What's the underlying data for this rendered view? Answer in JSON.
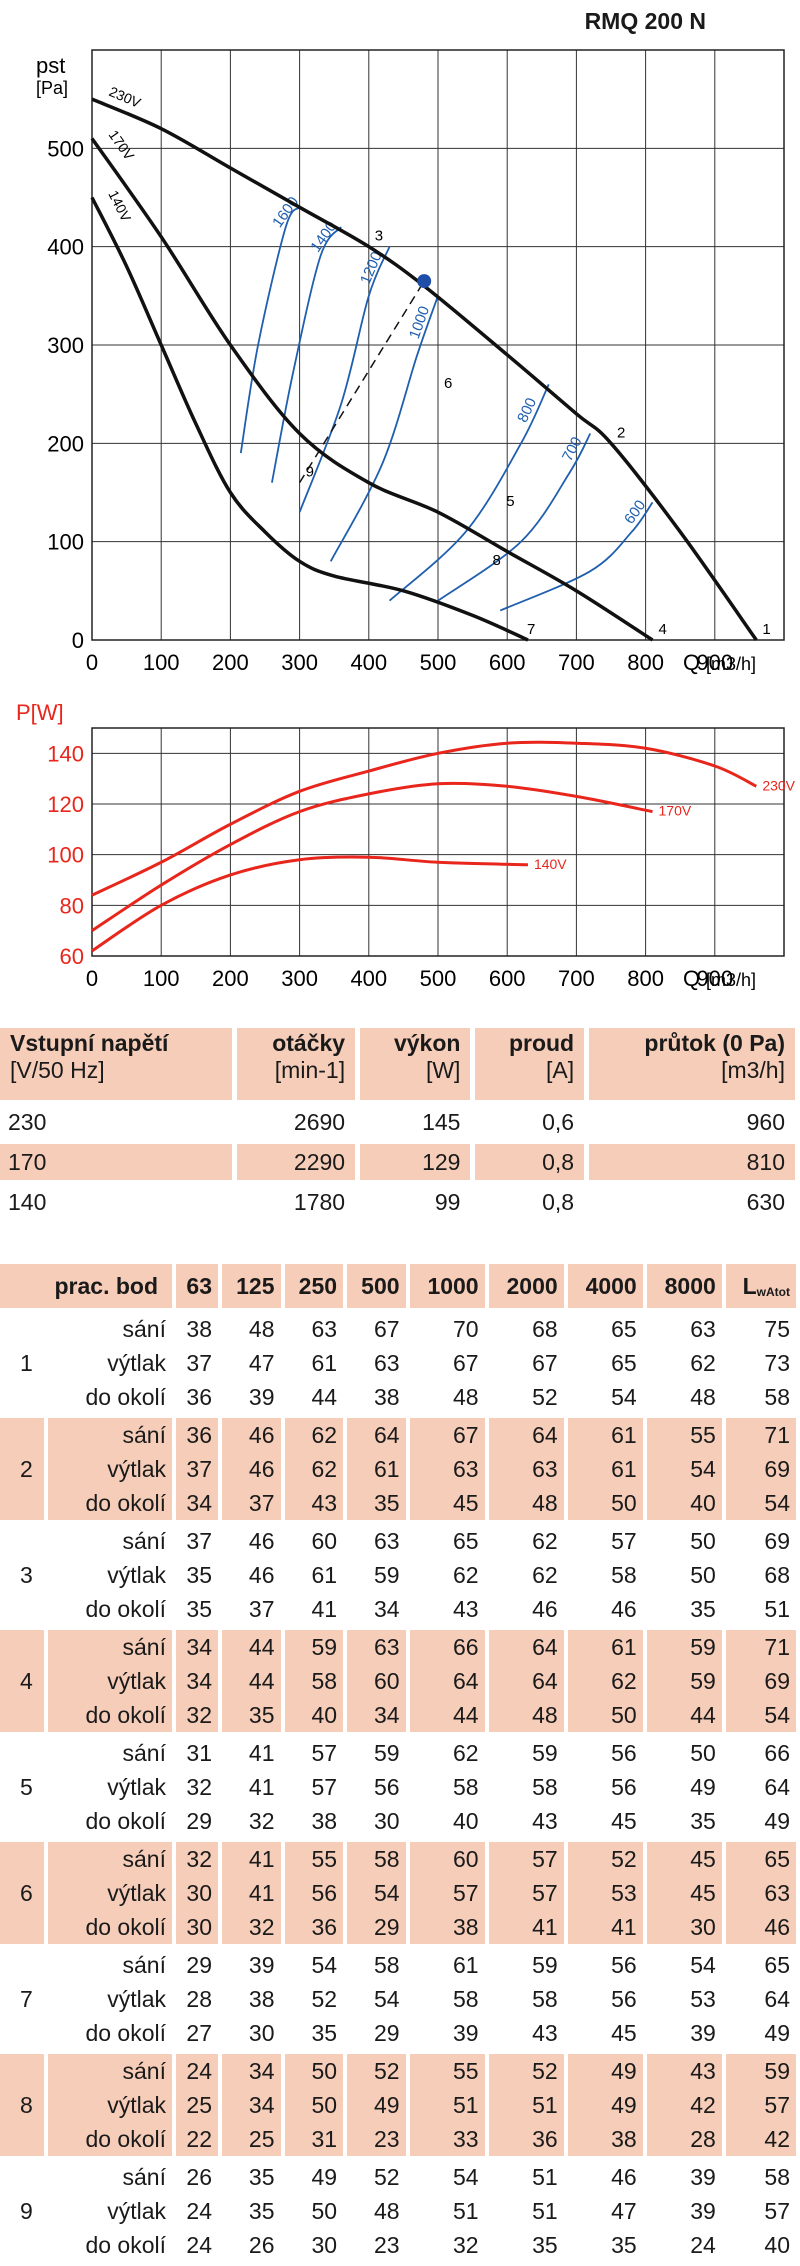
{
  "model": "RMQ 200 N",
  "chart_data": [
    {
      "type": "line",
      "title": "RMQ 200 N",
      "ylabel": "pst [Pa]",
      "xlabel": "Q [m3/h]",
      "xlim": [
        0,
        1000
      ],
      "ylim": [
        0,
        600
      ],
      "xticks": [
        0,
        100,
        200,
        300,
        400,
        500,
        600,
        700,
        800,
        900
      ],
      "yticks": [
        0,
        100,
        200,
        300,
        400,
        500
      ],
      "grid": true,
      "series": [
        {
          "name": "230V",
          "x": [
            0,
            100,
            200,
            300,
            400,
            480,
            600,
            700,
            750,
            850,
            960
          ],
          "y": [
            550,
            520,
            480,
            440,
            400,
            360,
            290,
            230,
            200,
            110,
            0
          ]
        },
        {
          "name": "170V",
          "x": [
            0,
            100,
            200,
            300,
            400,
            500,
            600,
            700,
            810
          ],
          "y": [
            510,
            410,
            300,
            210,
            160,
            130,
            90,
            50,
            0
          ]
        },
        {
          "name": "140V",
          "x": [
            0,
            50,
            100,
            150,
            200,
            250,
            300,
            350,
            450,
            550,
            630
          ],
          "y": [
            450,
            380,
            300,
            220,
            150,
            110,
            80,
            65,
            50,
            25,
            0
          ]
        }
      ],
      "rpm_curves": [
        {
          "label": "1600",
          "x": [
            215,
            240,
            280,
            300
          ],
          "y": [
            190,
            300,
            420,
            440
          ]
        },
        {
          "label": "1400",
          "x": [
            260,
            290,
            330,
            360
          ],
          "y": [
            160,
            270,
            390,
            420
          ]
        },
        {
          "label": "1200",
          "x": [
            300,
            360,
            400,
            430
          ],
          "y": [
            130,
            240,
            350,
            400
          ]
        },
        {
          "label": "1000",
          "x": [
            345,
            420,
            470,
            500
          ],
          "y": [
            80,
            180,
            290,
            350
          ]
        },
        {
          "label": "800",
          "x": [
            430,
            540,
            620,
            660
          ],
          "y": [
            40,
            110,
            200,
            260
          ]
        },
        {
          "label": "700",
          "x": [
            500,
            620,
            690,
            720
          ],
          "y": [
            40,
            100,
            170,
            210
          ]
        },
        {
          "label": "600",
          "x": [
            590,
            720,
            780,
            810
          ],
          "y": [
            30,
            70,
            110,
            140
          ]
        }
      ],
      "operating_points": [
        {
          "label": "1",
          "x": 960,
          "y": 0
        },
        {
          "label": "2",
          "x": 750,
          "y": 200
        },
        {
          "label": "3",
          "x": 400,
          "y": 400
        },
        {
          "label": "4",
          "x": 810,
          "y": 0
        },
        {
          "label": "5",
          "x": 590,
          "y": 130
        },
        {
          "label": "6",
          "x": 500,
          "y": 250
        },
        {
          "label": "7",
          "x": 620,
          "y": 0
        },
        {
          "label": "8",
          "x": 570,
          "y": 70
        },
        {
          "label": "9",
          "x": 300,
          "y": 160
        }
      ],
      "marker": {
        "x": 480,
        "y": 365
      }
    },
    {
      "type": "line",
      "ylabel": "P[W]",
      "xlabel": "Q [m3/h]",
      "xlim": [
        0,
        1000
      ],
      "ylim": [
        60,
        150
      ],
      "xticks": [
        0,
        100,
        200,
        300,
        400,
        500,
        600,
        700,
        800,
        900
      ],
      "yticks": [
        60,
        80,
        100,
        120,
        140
      ],
      "grid": true,
      "series": [
        {
          "name": "230V",
          "x": [
            0,
            100,
            200,
            300,
            400,
            500,
            600,
            700,
            800,
            900,
            960
          ],
          "y": [
            84,
            97,
            112,
            125,
            133,
            140,
            144,
            144,
            142,
            135,
            127
          ]
        },
        {
          "name": "170V",
          "x": [
            0,
            100,
            200,
            300,
            400,
            500,
            600,
            700,
            810
          ],
          "y": [
            70,
            88,
            104,
            117,
            124,
            128,
            127,
            123,
            117
          ]
        },
        {
          "name": "140V",
          "x": [
            0,
            100,
            200,
            300,
            400,
            500,
            630
          ],
          "y": [
            62,
            80,
            92,
            98,
            99,
            97,
            96
          ]
        }
      ]
    }
  ],
  "table1": {
    "headers": [
      {
        "bold": "Vstupní napětí",
        "unit": "[V/50 Hz]"
      },
      {
        "bold": "otáčky",
        "unit": "[min-1]"
      },
      {
        "bold": "výkon",
        "unit": "[W]"
      },
      {
        "bold": "proud",
        "unit": "[A]"
      },
      {
        "bold": "průtok (0 Pa)",
        "unit": "[m3/h]"
      }
    ],
    "rows": [
      [
        "230",
        "2690",
        "145",
        "0,6",
        "960"
      ],
      [
        "170",
        "2290",
        "129",
        "0,8",
        "810"
      ],
      [
        "140",
        "1780",
        "99",
        "0,8",
        "630"
      ]
    ]
  },
  "table2": {
    "headers": [
      "prac. bod",
      "63",
      "125",
      "250",
      "500",
      "1000",
      "2000",
      "4000",
      "8000",
      "LwAtot"
    ],
    "groups": [
      {
        "bod": "1",
        "rows": [
          [
            "sání",
            "38",
            "48",
            "63",
            "67",
            "70",
            "68",
            "65",
            "63",
            "75"
          ],
          [
            "výtlak",
            "37",
            "47",
            "61",
            "63",
            "67",
            "67",
            "65",
            "62",
            "73"
          ],
          [
            "do okolí",
            "36",
            "39",
            "44",
            "38",
            "48",
            "52",
            "54",
            "48",
            "58"
          ]
        ]
      },
      {
        "bod": "2",
        "rows": [
          [
            "sání",
            "36",
            "46",
            "62",
            "64",
            "67",
            "64",
            "61",
            "55",
            "71"
          ],
          [
            "výtlak",
            "37",
            "46",
            "62",
            "61",
            "63",
            "63",
            "61",
            "54",
            "69"
          ],
          [
            "do okolí",
            "34",
            "37",
            "43",
            "35",
            "45",
            "48",
            "50",
            "40",
            "54"
          ]
        ]
      },
      {
        "bod": "3",
        "rows": [
          [
            "sání",
            "37",
            "46",
            "60",
            "63",
            "65",
            "62",
            "57",
            "50",
            "69"
          ],
          [
            "výtlak",
            "35",
            "46",
            "61",
            "59",
            "62",
            "62",
            "58",
            "50",
            "68"
          ],
          [
            "do okolí",
            "35",
            "37",
            "41",
            "34",
            "43",
            "46",
            "46",
            "35",
            "51"
          ]
        ]
      },
      {
        "bod": "4",
        "rows": [
          [
            "sání",
            "34",
            "44",
            "59",
            "63",
            "66",
            "64",
            "61",
            "59",
            "71"
          ],
          [
            "výtlak",
            "34",
            "44",
            "58",
            "60",
            "64",
            "64",
            "62",
            "59",
            "69"
          ],
          [
            "do okolí",
            "32",
            "35",
            "40",
            "34",
            "44",
            "48",
            "50",
            "44",
            "54"
          ]
        ]
      },
      {
        "bod": "5",
        "rows": [
          [
            "sání",
            "31",
            "41",
            "57",
            "59",
            "62",
            "59",
            "56",
            "50",
            "66"
          ],
          [
            "výtlak",
            "32",
            "41",
            "57",
            "56",
            "58",
            "58",
            "56",
            "49",
            "64"
          ],
          [
            "do okolí",
            "29",
            "32",
            "38",
            "30",
            "40",
            "43",
            "45",
            "35",
            "49"
          ]
        ]
      },
      {
        "bod": "6",
        "rows": [
          [
            "sání",
            "32",
            "41",
            "55",
            "58",
            "60",
            "57",
            "52",
            "45",
            "65"
          ],
          [
            "výtlak",
            "30",
            "41",
            "56",
            "54",
            "57",
            "57",
            "53",
            "45",
            "63"
          ],
          [
            "do okolí",
            "30",
            "32",
            "36",
            "29",
            "38",
            "41",
            "41",
            "30",
            "46"
          ]
        ]
      },
      {
        "bod": "7",
        "rows": [
          [
            "sání",
            "29",
            "39",
            "54",
            "58",
            "61",
            "59",
            "56",
            "54",
            "65"
          ],
          [
            "výtlak",
            "28",
            "38",
            "52",
            "54",
            "58",
            "58",
            "56",
            "53",
            "64"
          ],
          [
            "do okolí",
            "27",
            "30",
            "35",
            "29",
            "39",
            "43",
            "45",
            "39",
            "49"
          ]
        ]
      },
      {
        "bod": "8",
        "rows": [
          [
            "sání",
            "24",
            "34",
            "50",
            "52",
            "55",
            "52",
            "49",
            "43",
            "59"
          ],
          [
            "výtlak",
            "25",
            "34",
            "50",
            "49",
            "51",
            "51",
            "49",
            "42",
            "57"
          ],
          [
            "do okolí",
            "22",
            "25",
            "31",
            "23",
            "33",
            "36",
            "38",
            "28",
            "42"
          ]
        ]
      },
      {
        "bod": "9",
        "rows": [
          [
            "sání",
            "26",
            "35",
            "49",
            "52",
            "54",
            "51",
            "46",
            "39",
            "58"
          ],
          [
            "výtlak",
            "24",
            "35",
            "50",
            "48",
            "51",
            "51",
            "47",
            "39",
            "57"
          ],
          [
            "do okolí",
            "24",
            "26",
            "30",
            "23",
            "32",
            "35",
            "35",
            "24",
            "40"
          ]
        ]
      }
    ]
  },
  "colors": {
    "shade": "#f6cdb9",
    "red": "#e8261c",
    "blue": "#1f5fae",
    "marker": "#1f4ea8"
  }
}
